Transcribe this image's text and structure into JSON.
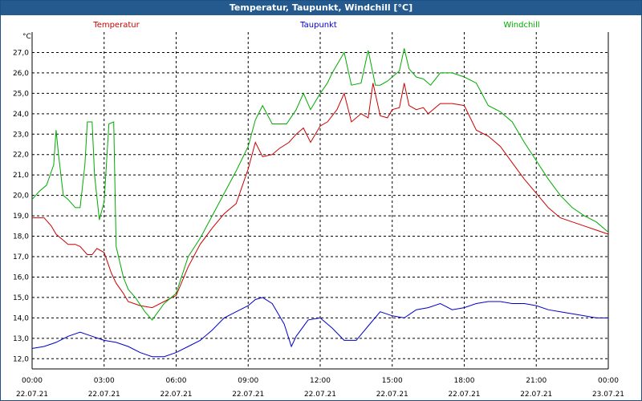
{
  "window": {
    "title": "Temperatur, Taupunkt, Windchill [°C]"
  },
  "chart_data": {
    "type": "line",
    "title": "Temperatur, Taupunkt, Windchill [°C]",
    "ylabel": "°C",
    "xlabel": "",
    "ylim": [
      11.5,
      28.0
    ],
    "xlim": [
      0,
      24
    ],
    "grid": true,
    "legend_position": "top",
    "y_ticks": [
      "12,0",
      "13,0",
      "14,0",
      "15,0",
      "16,0",
      "17,0",
      "18,0",
      "19,0",
      "20,0",
      "21,0",
      "22,0",
      "23,0",
      "24,0",
      "25,0",
      "26,0",
      "27,0"
    ],
    "x_ticks": [
      {
        "time": "00:00",
        "date": "22.07.21"
      },
      {
        "time": "03:00",
        "date": "22.07.21"
      },
      {
        "time": "06:00",
        "date": "22.07.21"
      },
      {
        "time": "09:00",
        "date": "22.07.21"
      },
      {
        "time": "12:00",
        "date": "22.07.21"
      },
      {
        "time": "15:00",
        "date": "22.07.21"
      },
      {
        "time": "18:00",
        "date": "22.07.21"
      },
      {
        "time": "21:00",
        "date": "22.07.21"
      },
      {
        "time": "00:00",
        "date": "23.07.21"
      }
    ],
    "series": [
      {
        "name": "Temperatur",
        "color": "#cc0000",
        "x": [
          0,
          0.5,
          0.8,
          1.0,
          1.3,
          1.5,
          1.8,
          2.0,
          2.3,
          2.5,
          2.7,
          3.0,
          3.3,
          3.5,
          3.8,
          4.0,
          4.5,
          5.0,
          5.5,
          6.0,
          6.5,
          7.0,
          7.5,
          8.0,
          8.5,
          9.0,
          9.3,
          9.6,
          10.0,
          10.3,
          10.7,
          11.0,
          11.3,
          11.6,
          12.0,
          12.3,
          12.7,
          13.0,
          13.3,
          13.7,
          14.0,
          14.2,
          14.5,
          14.8,
          15.0,
          15.3,
          15.5,
          15.7,
          16.0,
          16.3,
          16.5,
          17.0,
          17.5,
          18.0,
          18.5,
          19.0,
          19.5,
          20.0,
          20.5,
          21.0,
          21.5,
          22.0,
          22.5,
          23.0,
          23.5,
          24.0
        ],
        "values": [
          18.9,
          18.9,
          18.5,
          18.1,
          17.8,
          17.6,
          17.6,
          17.5,
          17.1,
          17.1,
          17.4,
          17.2,
          16.2,
          15.7,
          15.2,
          14.8,
          14.6,
          14.5,
          14.8,
          15.1,
          16.5,
          17.6,
          18.4,
          19.1,
          19.6,
          21.3,
          22.6,
          21.9,
          22.0,
          22.3,
          22.6,
          23.0,
          23.3,
          22.6,
          23.4,
          23.6,
          24.2,
          25.0,
          23.6,
          24.0,
          23.8,
          25.5,
          23.9,
          23.8,
          24.2,
          24.3,
          25.5,
          24.4,
          24.2,
          24.3,
          24.0,
          24.5,
          24.5,
          24.4,
          23.2,
          22.9,
          22.4,
          21.6,
          20.8,
          20.1,
          19.4,
          18.9,
          18.7,
          18.5,
          18.3,
          18.1
        ]
      },
      {
        "name": "Taupunkt",
        "color": "#0000cc",
        "x": [
          0,
          0.5,
          1.0,
          1.5,
          2.0,
          2.5,
          3.0,
          3.5,
          4.0,
          4.5,
          5.0,
          5.5,
          6.0,
          6.5,
          7.0,
          7.5,
          8.0,
          8.5,
          9.0,
          9.3,
          9.6,
          10.0,
          10.5,
          10.8,
          11.0,
          11.5,
          12.0,
          12.5,
          13.0,
          13.5,
          14.0,
          14.5,
          15.0,
          15.5,
          16.0,
          16.5,
          17.0,
          17.5,
          18.0,
          18.5,
          19.0,
          19.5,
          20.0,
          20.5,
          21.0,
          21.5,
          22.0,
          22.5,
          23.0,
          23.5,
          24.0
        ],
        "values": [
          12.5,
          12.6,
          12.8,
          13.1,
          13.3,
          13.1,
          12.9,
          12.8,
          12.6,
          12.3,
          12.1,
          12.1,
          12.3,
          12.6,
          12.9,
          13.4,
          14.0,
          14.3,
          14.6,
          14.9,
          15.0,
          14.7,
          13.7,
          12.6,
          13.1,
          13.9,
          14.0,
          13.5,
          12.9,
          12.9,
          13.6,
          14.3,
          14.1,
          14.0,
          14.4,
          14.5,
          14.7,
          14.4,
          14.5,
          14.7,
          14.8,
          14.8,
          14.7,
          14.7,
          14.6,
          14.4,
          14.3,
          14.2,
          14.1,
          14.0,
          14.0
        ]
      },
      {
        "name": "Windchill",
        "color": "#00aa00",
        "x": [
          0,
          0.3,
          0.6,
          0.9,
          1.0,
          1.1,
          1.3,
          1.5,
          1.8,
          2.0,
          2.2,
          2.3,
          2.5,
          2.6,
          2.8,
          3.0,
          3.2,
          3.4,
          3.5,
          3.8,
          4.0,
          4.3,
          4.7,
          5.0,
          5.5,
          6.0,
          6.5,
          7.0,
          7.5,
          8.0,
          8.5,
          9.0,
          9.3,
          9.6,
          10.0,
          10.3,
          10.6,
          11.0,
          11.3,
          11.6,
          12.0,
          12.3,
          12.5,
          12.8,
          13.0,
          13.3,
          13.7,
          14.0,
          14.3,
          14.5,
          14.8,
          15.0,
          15.3,
          15.5,
          15.7,
          16.0,
          16.3,
          16.6,
          17.0,
          17.5,
          18.0,
          18.5,
          19.0,
          19.5,
          20.0,
          20.5,
          21.0,
          21.5,
          22.0,
          22.5,
          23.0,
          23.5,
          24.0
        ],
        "values": [
          19.8,
          20.2,
          20.5,
          21.5,
          23.2,
          22.0,
          20.0,
          19.8,
          19.4,
          19.4,
          21.5,
          23.6,
          23.6,
          21.0,
          18.8,
          19.7,
          23.5,
          23.6,
          17.5,
          16.0,
          15.4,
          15.0,
          14.3,
          13.9,
          14.7,
          15.2,
          17.0,
          17.9,
          19.0,
          20.1,
          21.2,
          22.4,
          23.7,
          24.4,
          23.5,
          23.5,
          23.5,
          24.2,
          25.0,
          24.2,
          25.0,
          25.5,
          26.0,
          26.6,
          27.0,
          25.4,
          25.5,
          27.1,
          25.4,
          25.4,
          25.6,
          25.8,
          26.1,
          27.2,
          26.2,
          25.8,
          25.7,
          25.4,
          26.0,
          26.0,
          25.8,
          25.5,
          24.4,
          24.1,
          23.6,
          22.6,
          21.7,
          20.8,
          20.0,
          19.4,
          19.0,
          18.7,
          18.2
        ]
      }
    ]
  }
}
